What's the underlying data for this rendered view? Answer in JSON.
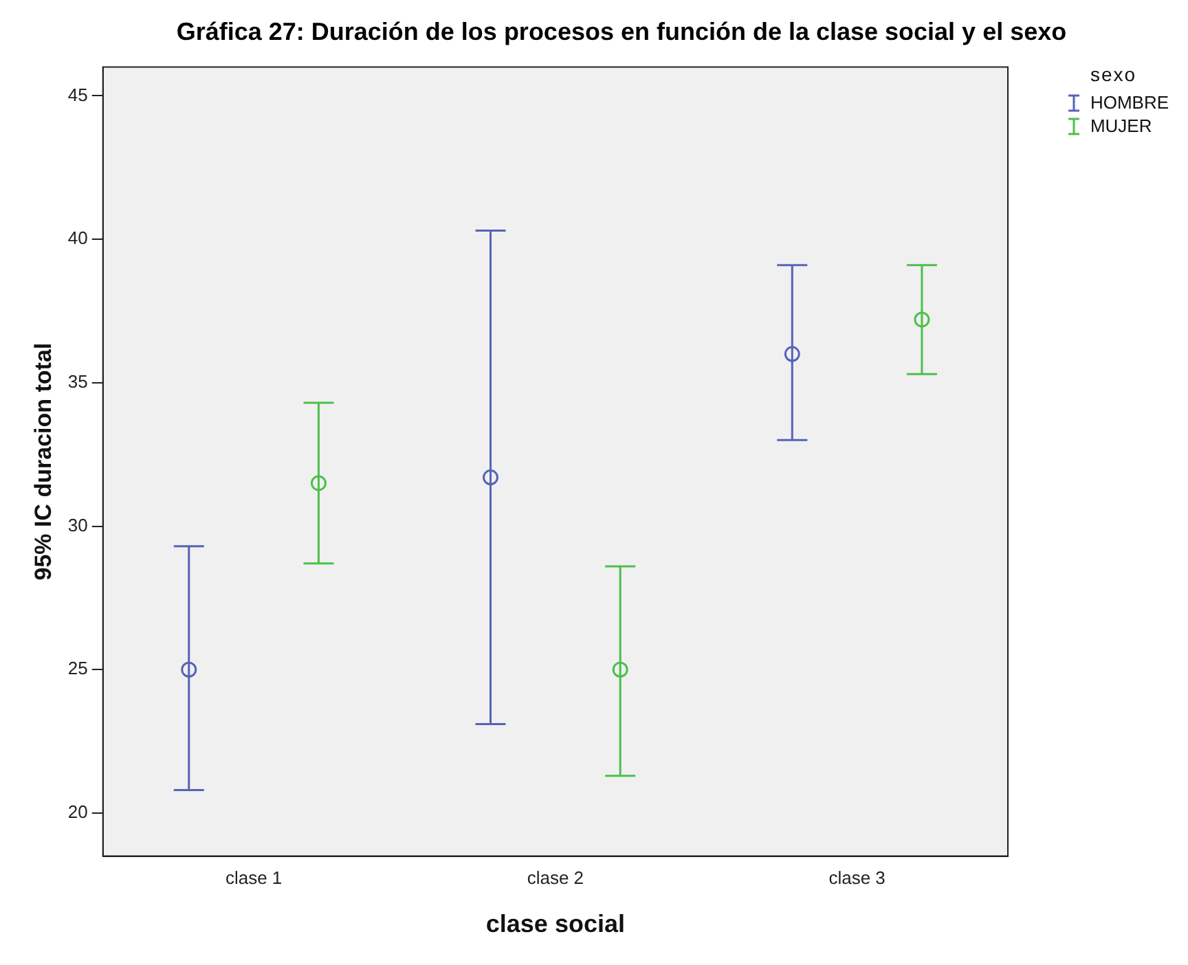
{
  "chart_data": {
    "type": "scatter",
    "title": "Gráfica 27: Duración de los procesos en función de la clase social y el sexo",
    "xlabel": "clase social",
    "ylabel": "95% IC duracion total",
    "legend_title": "sexo",
    "legend": "top right",
    "marker": "circle",
    "grid": false,
    "categories": [
      "clase 1",
      "clase 2",
      "clase 3"
    ],
    "ylim": [
      18.5,
      46
    ],
    "yticks": [
      20,
      25,
      30,
      35,
      40,
      45
    ],
    "series": [
      {
        "name": "HOMBRE",
        "color": "#5563b8",
        "values": [
          25.0,
          31.7,
          36.0
        ],
        "errors": [
          [
            20.8,
            29.3
          ],
          [
            23.1,
            40.3
          ],
          [
            33.0,
            39.1
          ]
        ]
      },
      {
        "name": "MUJER",
        "color": "#4cbf4c",
        "values": [
          31.5,
          25.0,
          37.2
        ],
        "errors": [
          [
            28.7,
            34.3
          ],
          [
            21.3,
            28.6
          ],
          [
            35.3,
            39.1
          ]
        ]
      }
    ]
  }
}
